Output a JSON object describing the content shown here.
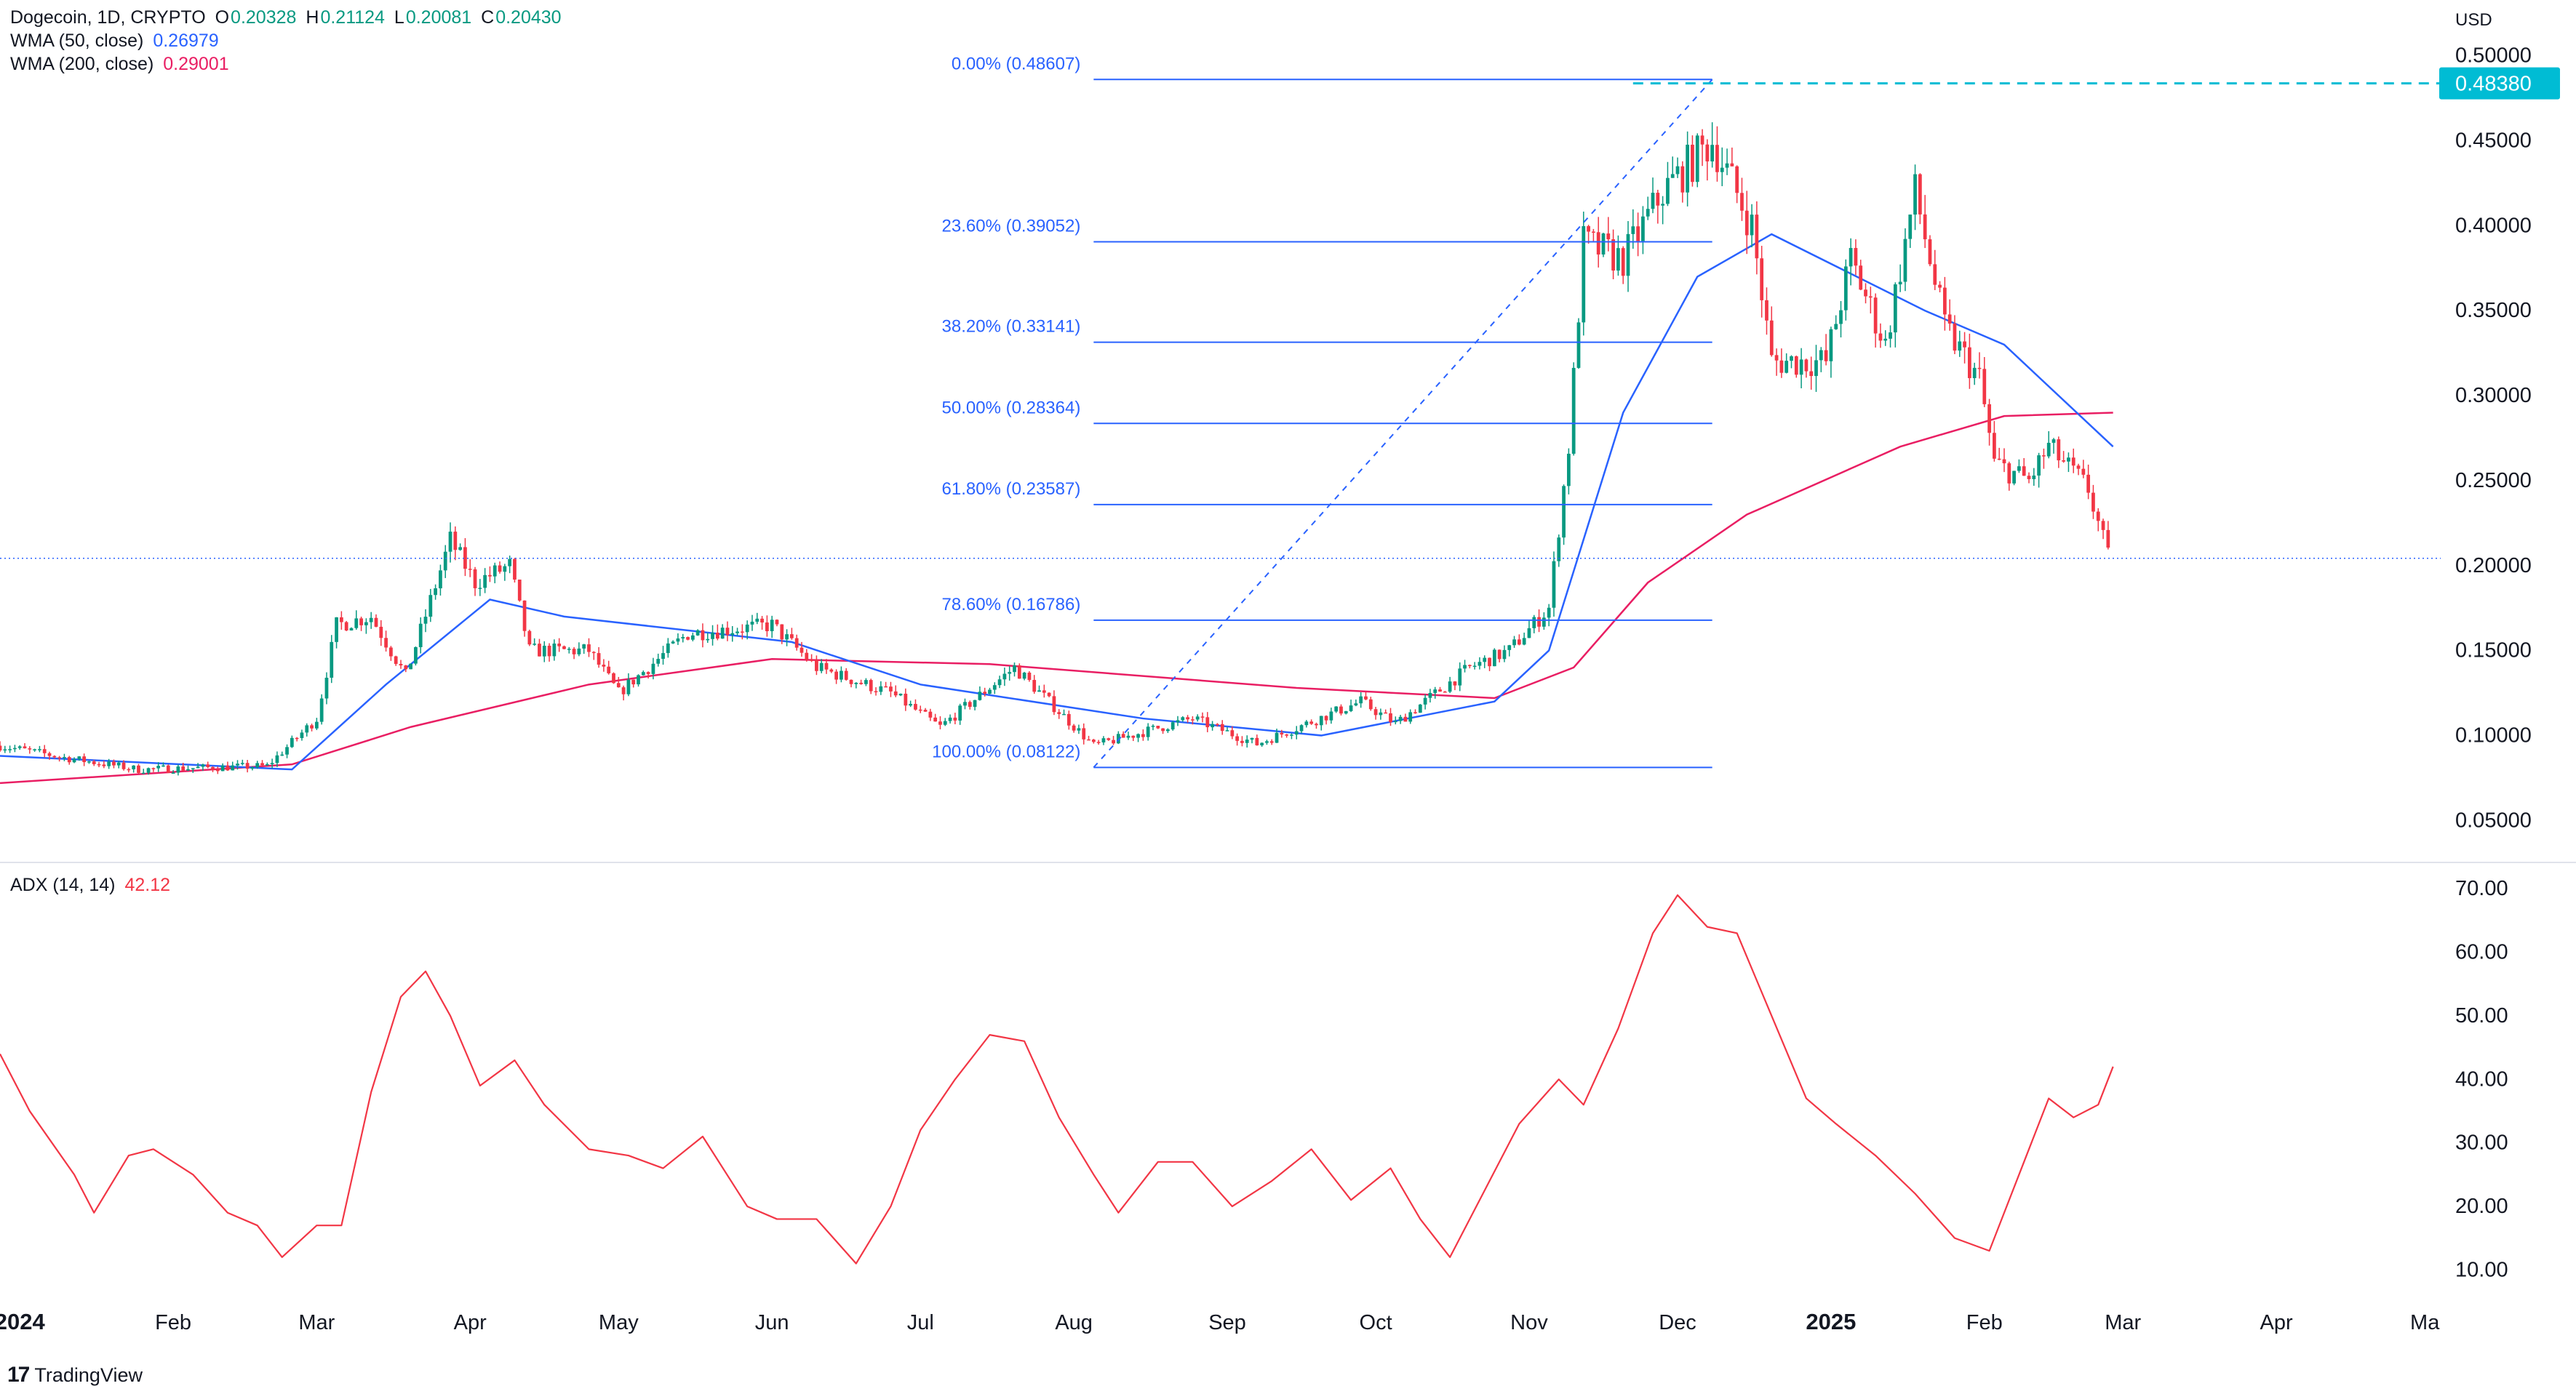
{
  "header": {
    "symbol": "Dogecoin, 1D, CRYPTO",
    "o_label": "O",
    "o_value": "0.20328",
    "h_label": "H",
    "h_value": "0.21124",
    "l_label": "L",
    "l_value": "0.20081",
    "c_label": "C",
    "c_value": "0.20430",
    "wma50_label": "WMA (50, close)",
    "wma50_value": "0.26979",
    "wma200_label": "WMA (200, close)",
    "wma200_value": "0.29001"
  },
  "adx_legend": {
    "label": "ADX (14, 14)",
    "value": "42.12"
  },
  "currency": "USD",
  "last_price_tag": "0.48380",
  "branding": "TradingView",
  "colors": {
    "up": "#089981",
    "down": "#f23645",
    "wma50": "#2962ff",
    "wma200": "#e91e63",
    "fib": "#2962ff",
    "adx": "#f23645",
    "price_tag_bg": "#00bcd4",
    "text": "#131722",
    "grid_line": "#e0e3eb"
  },
  "chart_data": [
    {
      "type": "candlestick",
      "title": "Dogecoin, 1D, CRYPTO",
      "ylabel": "USD",
      "ylim": [
        0.03,
        0.52
      ],
      "y_ticks": [
        "0.05000",
        "0.10000",
        "0.15000",
        "0.20000",
        "0.25000",
        "0.30000",
        "0.35000",
        "0.40000",
        "0.45000",
        "0.50000"
      ],
      "x_ticks": [
        "2024",
        "Feb",
        "Mar",
        "Apr",
        "May",
        "Jun",
        "Jul",
        "Aug",
        "Sep",
        "Oct",
        "Nov",
        "Dec",
        "2025",
        "Feb",
        "Mar",
        "Apr",
        "Ma"
      ],
      "x_tick_dates": [
        "2024-01-01",
        "2024-02-01",
        "2024-03-01",
        "2024-04-01",
        "2024-05-01",
        "2024-06-01",
        "2024-07-01",
        "2024-08-01",
        "2024-09-01",
        "2024-10-01",
        "2024-11-01",
        "2024-12-01",
        "2025-01-01",
        "2025-02-01",
        "2025-03-01",
        "2025-04-01",
        "2025-05-01"
      ],
      "x_range": [
        "2023-12-28",
        "2025-05-02"
      ],
      "price_path": [
        [
          "2023-12-28",
          0.094
        ],
        [
          "2024-01-10",
          0.087
        ],
        [
          "2024-01-25",
          0.08
        ],
        [
          "2024-02-20",
          0.082
        ],
        [
          "2024-03-01",
          0.11
        ],
        [
          "2024-03-05",
          0.165
        ],
        [
          "2024-03-12",
          0.17
        ],
        [
          "2024-03-19",
          0.135
        ],
        [
          "2024-03-28",
          0.215
        ],
        [
          "2024-04-02",
          0.19
        ],
        [
          "2024-04-09",
          0.2
        ],
        [
          "2024-04-13",
          0.15
        ],
        [
          "2024-04-25",
          0.15
        ],
        [
          "2024-05-01",
          0.125
        ],
        [
          "2024-05-15",
          0.16
        ],
        [
          "2024-06-01",
          0.165
        ],
        [
          "2024-06-10",
          0.14
        ],
        [
          "2024-06-25",
          0.125
        ],
        [
          "2024-07-05",
          0.105
        ],
        [
          "2024-07-20",
          0.14
        ],
        [
          "2024-08-05",
          0.094
        ],
        [
          "2024-08-25",
          0.11
        ],
        [
          "2024-09-07",
          0.095
        ],
        [
          "2024-09-28",
          0.12
        ],
        [
          "2024-10-05",
          0.107
        ],
        [
          "2024-10-20",
          0.14
        ],
        [
          "2024-10-28",
          0.15
        ],
        [
          "2024-11-05",
          0.175
        ],
        [
          "2024-11-09",
          0.27
        ],
        [
          "2024-11-12",
          0.39
        ],
        [
          "2024-11-20",
          0.38
        ],
        [
          "2024-11-28",
          0.42
        ],
        [
          "2024-12-08",
          0.45
        ],
        [
          "2024-12-16",
          0.4
        ],
        [
          "2024-12-20",
          0.32
        ],
        [
          "2024-12-31",
          0.32
        ],
        [
          "2025-01-05",
          0.38
        ],
        [
          "2025-01-12",
          0.33
        ],
        [
          "2025-01-18",
          0.42
        ],
        [
          "2025-01-24",
          0.34
        ],
        [
          "2025-01-31",
          0.31
        ],
        [
          "2025-02-03",
          0.26
        ],
        [
          "2025-02-10",
          0.25
        ],
        [
          "2025-02-14",
          0.27
        ],
        [
          "2025-02-22",
          0.245
        ],
        [
          "2025-02-26",
          0.205
        ]
      ],
      "wma50": [
        [
          "2023-12-28",
          0.088
        ],
        [
          "2024-02-25",
          0.08
        ],
        [
          "2024-03-15",
          0.13
        ],
        [
          "2024-04-05",
          0.18
        ],
        [
          "2024-04-20",
          0.17
        ],
        [
          "2024-06-05",
          0.155
        ],
        [
          "2024-07-01",
          0.13
        ],
        [
          "2024-08-15",
          0.11
        ],
        [
          "2024-09-20",
          0.1
        ],
        [
          "2024-10-25",
          0.12
        ],
        [
          "2024-11-05",
          0.15
        ],
        [
          "2024-11-20",
          0.29
        ],
        [
          "2024-12-05",
          0.37
        ],
        [
          "2024-12-20",
          0.395
        ],
        [
          "2025-01-20",
          0.35
        ],
        [
          "2025-02-05",
          0.33
        ],
        [
          "2025-02-27",
          0.27
        ]
      ],
      "wma200": [
        [
          "2023-12-28",
          0.072
        ],
        [
          "2024-02-25",
          0.083
        ],
        [
          "2024-03-20",
          0.105
        ],
        [
          "2024-04-25",
          0.13
        ],
        [
          "2024-06-01",
          0.145
        ],
        [
          "2024-07-15",
          0.142
        ],
        [
          "2024-09-15",
          0.128
        ],
        [
          "2024-10-25",
          0.122
        ],
        [
          "2024-11-10",
          0.14
        ],
        [
          "2024-11-25",
          0.19
        ],
        [
          "2024-12-15",
          0.23
        ],
        [
          "2025-01-15",
          0.27
        ],
        [
          "2025-02-05",
          0.288
        ],
        [
          "2025-02-27",
          0.29
        ]
      ],
      "fib_levels": [
        {
          "label": "0.00% (0.48607)",
          "value": 0.48607
        },
        {
          "label": "23.60% (0.39052)",
          "value": 0.39052
        },
        {
          "label": "38.20% (0.33141)",
          "value": 0.33141
        },
        {
          "label": "50.00% (0.28364)",
          "value": 0.28364
        },
        {
          "label": "61.80% (0.23587)",
          "value": 0.23587
        },
        {
          "label": "78.60% (0.16786)",
          "value": 0.16786
        },
        {
          "label": "100.00% (0.08122)",
          "value": 0.08122
        }
      ],
      "fib_range": [
        "2024-08-05",
        "2024-12-08"
      ],
      "last_price": 0.4838,
      "last_price_line_start": "2024-11-22",
      "current_close_line": 0.2043
    },
    {
      "type": "line",
      "title": "ADX (14, 14)",
      "ylim": [
        5,
        73
      ],
      "y_ticks": [
        "10.00",
        "20.00",
        "30.00",
        "40.00",
        "50.00",
        "60.00",
        "70.00"
      ],
      "series": [
        {
          "name": "ADX (14, 14)",
          "points": [
            [
              "2023-12-28",
              44
            ],
            [
              "2024-01-03",
              35
            ],
            [
              "2024-01-12",
              25
            ],
            [
              "2024-01-16",
              19
            ],
            [
              "2024-01-23",
              28
            ],
            [
              "2024-01-28",
              29
            ],
            [
              "2024-02-05",
              25
            ],
            [
              "2024-02-12",
              19
            ],
            [
              "2024-02-18",
              17
            ],
            [
              "2024-02-23",
              12
            ],
            [
              "2024-03-01",
              17
            ],
            [
              "2024-03-06",
              17
            ],
            [
              "2024-03-12",
              38
            ],
            [
              "2024-03-18",
              53
            ],
            [
              "2024-03-23",
              57
            ],
            [
              "2024-03-28",
              50
            ],
            [
              "2024-04-03",
              39
            ],
            [
              "2024-04-10",
              43
            ],
            [
              "2024-04-16",
              36
            ],
            [
              "2024-04-25",
              29
            ],
            [
              "2024-05-03",
              28
            ],
            [
              "2024-05-10",
              26
            ],
            [
              "2024-05-18",
              31
            ],
            [
              "2024-05-27",
              20
            ],
            [
              "2024-06-02",
              18
            ],
            [
              "2024-06-10",
              18
            ],
            [
              "2024-06-18",
              11
            ],
            [
              "2024-06-25",
              20
            ],
            [
              "2024-07-01",
              32
            ],
            [
              "2024-07-08",
              40
            ],
            [
              "2024-07-15",
              47
            ],
            [
              "2024-07-22",
              46
            ],
            [
              "2024-07-29",
              34
            ],
            [
              "2024-08-05",
              25
            ],
            [
              "2024-08-10",
              19
            ],
            [
              "2024-08-18",
              27
            ],
            [
              "2024-08-25",
              27
            ],
            [
              "2024-09-02",
              20
            ],
            [
              "2024-09-10",
              24
            ],
            [
              "2024-09-18",
              29
            ],
            [
              "2024-09-26",
              21
            ],
            [
              "2024-10-04",
              26
            ],
            [
              "2024-10-10",
              18
            ],
            [
              "2024-10-16",
              12
            ],
            [
              "2024-10-24",
              24
            ],
            [
              "2024-10-30",
              33
            ],
            [
              "2024-11-07",
              40
            ],
            [
              "2024-11-12",
              36
            ],
            [
              "2024-11-19",
              48
            ],
            [
              "2024-11-26",
              63
            ],
            [
              "2024-12-01",
              69
            ],
            [
              "2024-12-07",
              64
            ],
            [
              "2024-12-13",
              63
            ],
            [
              "2024-12-20",
              50
            ],
            [
              "2024-12-27",
              37
            ],
            [
              "2025-01-02",
              33
            ],
            [
              "2025-01-10",
              28
            ],
            [
              "2025-01-18",
              22
            ],
            [
              "2025-01-26",
              15
            ],
            [
              "2025-02-02",
              13
            ],
            [
              "2025-02-09",
              27
            ],
            [
              "2025-02-14",
              37
            ],
            [
              "2025-02-19",
              34
            ],
            [
              "2025-02-24",
              36
            ],
            [
              "2025-02-27",
              42
            ]
          ]
        }
      ]
    }
  ]
}
